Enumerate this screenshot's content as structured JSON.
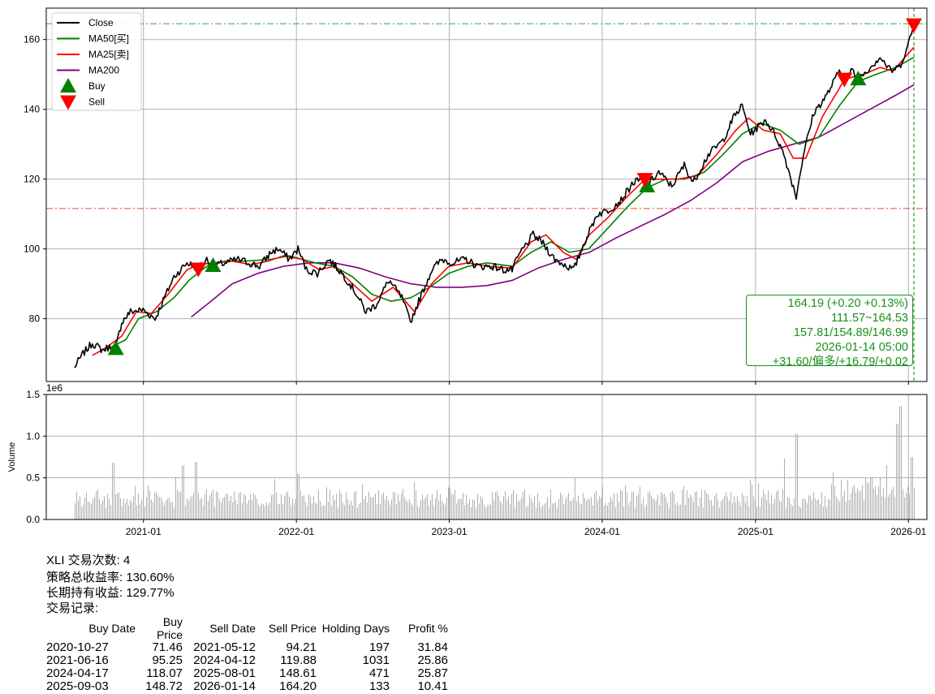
{
  "chart_data": [
    {
      "type": "line",
      "panel": "price",
      "x_ticks": [
        "2021-01",
        "2022-01",
        "2023-01",
        "2024-01",
        "2025-01",
        "2026-01"
      ],
      "y_ticks": [
        80,
        100,
        120,
        140,
        160
      ],
      "ylim": [
        62,
        169
      ],
      "grid": true,
      "legend_position": "upper-left",
      "legend": [
        {
          "name": "Close",
          "color": "#000000",
          "kind": "line"
        },
        {
          "name": "MA50[买]",
          "color": "#008000",
          "kind": "line"
        },
        {
          "name": "MA25[卖]",
          "color": "#ff0000",
          "kind": "line"
        },
        {
          "name": "MA200",
          "color": "#800080",
          "kind": "line"
        },
        {
          "name": "Buy",
          "color": "#008000",
          "kind": "triangle-up"
        },
        {
          "name": "Sell",
          "color": "#ff0000",
          "kind": "triangle-down"
        }
      ],
      "series": [
        {
          "name": "Close",
          "color": "#000000",
          "points": [
            [
              "2020-07-20",
              66
            ],
            [
              "2020-08-10",
              70
            ],
            [
              "2020-09-01",
              73
            ],
            [
              "2020-09-25",
              71
            ],
            [
              "2020-10-15",
              72
            ],
            [
              "2020-10-27",
              71.5
            ],
            [
              "2020-11-10",
              79
            ],
            [
              "2020-12-01",
              82
            ],
            [
              "2020-12-31",
              82.5
            ],
            [
              "2021-01-29",
              80
            ],
            [
              "2021-02-20",
              86
            ],
            [
              "2021-03-15",
              92
            ],
            [
              "2021-04-15",
              96
            ],
            [
              "2021-05-12",
              94.5
            ],
            [
              "2021-06-01",
              97
            ],
            [
              "2021-06-16",
              95
            ],
            [
              "2021-07-15",
              96
            ],
            [
              "2021-08-15",
              97
            ],
            [
              "2021-09-10",
              96
            ],
            [
              "2021-10-05",
              95
            ],
            [
              "2021-11-01",
              99
            ],
            [
              "2021-11-20",
              100
            ],
            [
              "2021-12-15",
              97
            ],
            [
              "2022-01-05",
              100
            ],
            [
              "2022-01-25",
              94
            ],
            [
              "2022-02-20",
              93
            ],
            [
              "2022-03-20",
              97
            ],
            [
              "2022-04-20",
              93
            ],
            [
              "2022-05-20",
              88
            ],
            [
              "2022-06-16",
              82
            ],
            [
              "2022-07-10",
              84
            ],
            [
              "2022-08-10",
              91
            ],
            [
              "2022-09-10",
              86
            ],
            [
              "2022-09-30",
              79
            ],
            [
              "2022-10-20",
              85
            ],
            [
              "2022-11-20",
              94
            ],
            [
              "2022-12-15",
              97
            ],
            [
              "2023-01-10",
              96
            ],
            [
              "2023-02-10",
              97
            ],
            [
              "2023-03-10",
              95
            ],
            [
              "2023-04-15",
              95
            ],
            [
              "2023-05-10",
              94
            ],
            [
              "2023-05-31",
              94
            ],
            [
              "2023-06-20",
              99
            ],
            [
              "2023-07-20",
              104
            ],
            [
              "2023-08-10",
              102
            ],
            [
              "2023-09-10",
              97
            ],
            [
              "2023-10-25",
              94
            ],
            [
              "2023-11-20",
              102
            ],
            [
              "2023-12-20",
              110
            ],
            [
              "2024-01-15",
              111
            ],
            [
              "2024-02-15",
              114
            ],
            [
              "2024-03-15",
              119
            ],
            [
              "2024-04-12",
              120
            ],
            [
              "2024-04-17",
              118
            ],
            [
              "2024-05-15",
              122
            ],
            [
              "2024-06-15",
              118
            ],
            [
              "2024-07-15",
              124
            ],
            [
              "2024-08-05",
              119
            ],
            [
              "2024-09-10",
              127
            ],
            [
              "2024-10-15",
              131
            ],
            [
              "2024-11-11",
              138
            ],
            [
              "2024-11-30",
              141
            ],
            [
              "2024-12-20",
              133
            ],
            [
              "2025-01-25",
              137
            ],
            [
              "2025-02-20",
              132
            ],
            [
              "2025-03-10",
              127
            ],
            [
              "2025-04-08",
              115
            ],
            [
              "2025-04-25",
              127
            ],
            [
              "2025-05-20",
              139
            ],
            [
              "2025-06-20",
              144
            ],
            [
              "2025-07-20",
              151
            ],
            [
              "2025-08-01",
              149
            ],
            [
              "2025-08-20",
              151
            ],
            [
              "2025-09-03",
              148.7
            ],
            [
              "2025-10-01",
              152
            ],
            [
              "2025-10-25",
              155
            ],
            [
              "2025-11-20",
              151
            ],
            [
              "2025-12-10",
              152
            ],
            [
              "2025-12-30",
              158
            ],
            [
              "2026-01-14",
              164.19
            ]
          ]
        },
        {
          "name": "MA50[买]",
          "color": "#008000",
          "points": [
            [
              "2020-10-10",
              71.5
            ],
            [
              "2020-11-20",
              74
            ],
            [
              "2020-12-20",
              80
            ],
            [
              "2021-02-01",
              82
            ],
            [
              "2021-03-15",
              86
            ],
            [
              "2021-04-20",
              91
            ],
            [
              "2021-06-01",
              95
            ],
            [
              "2021-07-15",
              96.5
            ],
            [
              "2021-09-01",
              96.5
            ],
            [
              "2021-11-01",
              97
            ],
            [
              "2021-12-15",
              98
            ],
            [
              "2022-02-15",
              96
            ],
            [
              "2022-04-01",
              95
            ],
            [
              "2022-05-15",
              92
            ],
            [
              "2022-06-30",
              87
            ],
            [
              "2022-08-15",
              85
            ],
            [
              "2022-10-01",
              86
            ],
            [
              "2022-11-15",
              89
            ],
            [
              "2022-12-31",
              93
            ],
            [
              "2023-02-15",
              95
            ],
            [
              "2023-04-01",
              96
            ],
            [
              "2023-05-31",
              95
            ],
            [
              "2023-07-15",
              99
            ],
            [
              "2023-09-01",
              102
            ],
            [
              "2023-10-15",
              99
            ],
            [
              "2023-11-30",
              100
            ],
            [
              "2024-01-15",
              106
            ],
            [
              "2024-03-01",
              112
            ],
            [
              "2024-04-17",
              117.5
            ],
            [
              "2024-06-01",
              120
            ],
            [
              "2024-07-15",
              120
            ],
            [
              "2024-09-01",
              122
            ],
            [
              "2024-10-15",
              127
            ],
            [
              "2024-12-01",
              133
            ],
            [
              "2025-01-15",
              136
            ],
            [
              "2025-03-01",
              134
            ],
            [
              "2025-04-15",
              130
            ],
            [
              "2025-06-01",
              132
            ],
            [
              "2025-07-20",
              141
            ],
            [
              "2025-09-03",
              148
            ],
            [
              "2025-10-15",
              150
            ],
            [
              "2025-12-01",
              152
            ],
            [
              "2026-01-14",
              154.89
            ]
          ]
        },
        {
          "name": "MA25[卖]",
          "color": "#ff0000",
          "points": [
            [
              "2020-09-01",
              69.5
            ],
            [
              "2020-10-01",
              71.5
            ],
            [
              "2020-11-10",
              75
            ],
            [
              "2020-12-15",
              82
            ],
            [
              "2021-01-20",
              81.5
            ],
            [
              "2021-03-01",
              87
            ],
            [
              "2021-04-15",
              94
            ],
            [
              "2021-05-12",
              95.5
            ],
            [
              "2021-06-20",
              96
            ],
            [
              "2021-08-01",
              96.5
            ],
            [
              "2021-09-15",
              95.5
            ],
            [
              "2021-10-25",
              96.5
            ],
            [
              "2021-12-01",
              98
            ],
            [
              "2022-01-15",
              97
            ],
            [
              "2022-02-25",
              94
            ],
            [
              "2022-04-01",
              95
            ],
            [
              "2022-05-15",
              90
            ],
            [
              "2022-06-30",
              85
            ],
            [
              "2022-08-20",
              89
            ],
            [
              "2022-10-10",
              82
            ],
            [
              "2022-11-20",
              90
            ],
            [
              "2022-12-31",
              95
            ],
            [
              "2023-02-15",
              96
            ],
            [
              "2023-04-01",
              95
            ],
            [
              "2023-05-31",
              94.5
            ],
            [
              "2023-07-15",
              102
            ],
            [
              "2023-08-20",
              104
            ],
            [
              "2023-09-30",
              99
            ],
            [
              "2023-10-31",
              97
            ],
            [
              "2023-12-01",
              104
            ],
            [
              "2024-01-15",
              109
            ],
            [
              "2024-03-01",
              115
            ],
            [
              "2024-04-12",
              119.9
            ],
            [
              "2024-05-20",
              120
            ],
            [
              "2024-07-01",
              120
            ],
            [
              "2024-08-15",
              121
            ],
            [
              "2024-09-30",
              127
            ],
            [
              "2024-11-15",
              134
            ],
            [
              "2024-12-15",
              137.5
            ],
            [
              "2025-01-20",
              134
            ],
            [
              "2025-03-01",
              133
            ],
            [
              "2025-04-01",
              126
            ],
            [
              "2025-05-01",
              126
            ],
            [
              "2025-06-10",
              138
            ],
            [
              "2025-07-20",
              146
            ],
            [
              "2025-08-01",
              148.6
            ],
            [
              "2025-09-15",
              150
            ],
            [
              "2025-10-25",
              152
            ],
            [
              "2025-11-25",
              151
            ],
            [
              "2026-01-14",
              157.81
            ]
          ]
        },
        {
          "name": "MA200",
          "color": "#800080",
          "points": [
            [
              "2021-04-25",
              80.5
            ],
            [
              "2021-06-01",
              84
            ],
            [
              "2021-08-01",
              90
            ],
            [
              "2021-10-01",
              93
            ],
            [
              "2021-12-01",
              95
            ],
            [
              "2022-02-01",
              96
            ],
            [
              "2022-04-01",
              96
            ],
            [
              "2022-06-01",
              94.5
            ],
            [
              "2022-08-01",
              92
            ],
            [
              "2022-10-01",
              90
            ],
            [
              "2022-12-01",
              89
            ],
            [
              "2023-02-01",
              89
            ],
            [
              "2023-04-01",
              89.5
            ],
            [
              "2023-06-01",
              91
            ],
            [
              "2023-08-01",
              94.5
            ],
            [
              "2023-10-01",
              97
            ],
            [
              "2023-12-01",
              99
            ],
            [
              "2024-02-01",
              103
            ],
            [
              "2024-04-01",
              106.5
            ],
            [
              "2024-06-01",
              110
            ],
            [
              "2024-08-01",
              114
            ],
            [
              "2024-10-01",
              119
            ],
            [
              "2024-12-01",
              125
            ],
            [
              "2025-02-01",
              128
            ],
            [
              "2025-04-01",
              130
            ],
            [
              "2025-06-01",
              132
            ],
            [
              "2025-08-01",
              136
            ],
            [
              "2025-10-01",
              140
            ],
            [
              "2025-12-01",
              144
            ],
            [
              "2026-01-14",
              146.99
            ]
          ]
        }
      ],
      "buy_signals": [
        [
          "2020-10-27",
          71.46
        ],
        [
          "2021-06-16",
          95.25
        ],
        [
          "2024-04-17",
          118.07
        ],
        [
          "2025-09-03",
          148.72
        ]
      ],
      "sell_signals": [
        [
          "2021-05-12",
          94.21
        ],
        [
          "2024-04-12",
          119.88
        ],
        [
          "2025-08-01",
          148.61
        ],
        [
          "2026-01-14",
          164.2
        ]
      ],
      "reference_lines": {
        "horizontal": [
          {
            "value": 111.57,
            "color": "#ff0000"
          },
          {
            "value": 164.53,
            "color": "#008000"
          }
        ],
        "vertical": [
          {
            "date": "2026-01-14",
            "color": "#008000"
          }
        ]
      },
      "info_box": [
        "164.19 (+0.20 +0.13%)",
        "111.57~164.53",
        "157.81/154.89/146.99",
        "2026-01-14 05:00",
        "+31.60/偏多/+16.79/+0.02"
      ]
    },
    {
      "type": "bar",
      "panel": "volume",
      "ylabel": "Volume",
      "scale_label": "1e6",
      "y_ticks": [
        "0.0",
        "0.5",
        "1.0",
        "1.5"
      ],
      "ylim": [
        0,
        1.5
      ],
      "color": "#b0b0b0",
      "spikes": [
        [
          "2020-10-20",
          0.68
        ],
        [
          "2021-04-05",
          0.65
        ],
        [
          "2021-05-05",
          0.69
        ],
        [
          "2022-01-05",
          0.55
        ],
        [
          "2025-03-10",
          0.73
        ],
        [
          "2025-04-08",
          1.03
        ],
        [
          "2025-12-05",
          1.15
        ],
        [
          "2025-12-12",
          1.36
        ],
        [
          "2026-01-08",
          0.75
        ]
      ],
      "x_ticks": [
        "2021-01",
        "2022-01",
        "2023-01",
        "2024-01",
        "2025-01",
        "2026-01"
      ]
    }
  ],
  "stats": {
    "trade_count": "XLI 交易次数: 4",
    "strategy_return": "策略总收益率: 130.60%",
    "buy_hold_return": "长期持有收益: 129.77%",
    "records_title": "交易记录:"
  },
  "trades": {
    "headers": [
      "Buy Date",
      "Buy Price",
      "Sell Date",
      "Sell Price",
      "Holding Days",
      "Profit %"
    ],
    "rows": [
      [
        "2020-10-27",
        "71.46",
        "2021-05-12",
        "94.21",
        "197",
        "31.84"
      ],
      [
        "2021-06-16",
        "95.25",
        "2024-04-12",
        "119.88",
        "1031",
        "25.86"
      ],
      [
        "2024-04-17",
        "118.07",
        "2025-08-01",
        "148.61",
        "471",
        "25.87"
      ],
      [
        "2025-09-03",
        "148.72",
        "2026-01-14",
        "164.20",
        "133",
        "10.41"
      ]
    ]
  }
}
